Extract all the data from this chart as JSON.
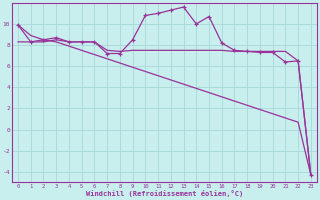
{
  "title": "",
  "xlabel": "Windchill (Refroidissement éolien,°C)",
  "background_color": "#c8eeee",
  "grid_color": "#a8d8d8",
  "line_color": "#993399",
  "x_hours": [
    0,
    1,
    2,
    3,
    4,
    5,
    6,
    7,
    8,
    9,
    10,
    11,
    12,
    13,
    14,
    15,
    16,
    17,
    18,
    19,
    20,
    21,
    22,
    23
  ],
  "line_temp": [
    9.9,
    8.3,
    8.5,
    8.7,
    8.3,
    8.3,
    8.3,
    7.2,
    7.2,
    8.5,
    10.8,
    11.0,
    11.3,
    11.6,
    10.0,
    10.7,
    8.2,
    7.5,
    7.4,
    7.3,
    7.3,
    6.4,
    6.5,
    -4.3
  ],
  "line_flat": [
    8.3,
    8.3,
    8.3,
    8.5,
    8.3,
    8.3,
    8.3,
    7.5,
    7.4,
    7.5,
    7.5,
    7.5,
    7.5,
    7.5,
    7.5,
    7.5,
    7.5,
    7.4,
    7.4,
    7.4,
    7.4,
    7.4,
    6.5,
    -4.3
  ],
  "line_diag": [
    9.9,
    8.9,
    8.5,
    8.3,
    7.9,
    7.5,
    7.1,
    6.7,
    6.3,
    5.9,
    5.5,
    5.1,
    4.7,
    4.3,
    3.9,
    3.5,
    3.1,
    2.7,
    2.3,
    1.9,
    1.5,
    1.1,
    0.7,
    -4.3
  ],
  "ylim": [
    -5,
    12
  ],
  "xlim": [
    -0.5,
    23.5
  ],
  "yticks": [
    -4,
    -2,
    0,
    2,
    4,
    6,
    8,
    10
  ],
  "xticks": [
    0,
    1,
    2,
    3,
    4,
    5,
    6,
    7,
    8,
    9,
    10,
    11,
    12,
    13,
    14,
    15,
    16,
    17,
    18,
    19,
    20,
    21,
    22,
    23
  ]
}
